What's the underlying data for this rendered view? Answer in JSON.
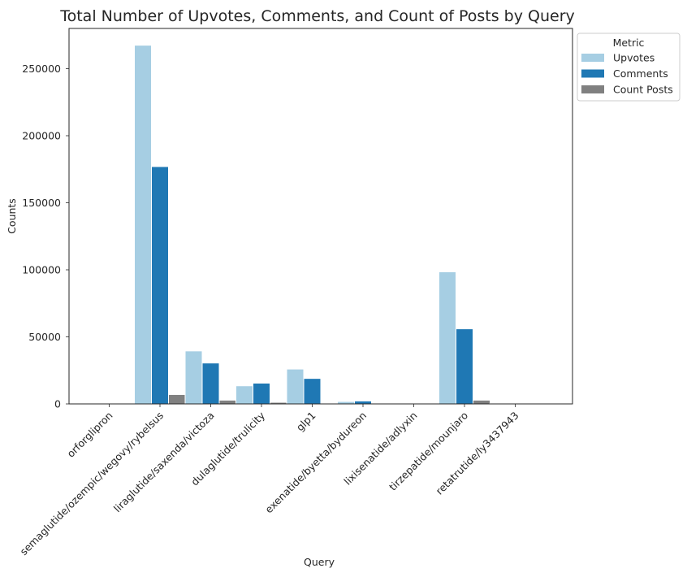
{
  "chart_data": {
    "type": "bar",
    "title": "Total Number of Upvotes, Comments, and Count of Posts by Query",
    "xlabel": "Query",
    "ylabel": "Counts",
    "categories": [
      "orforglipron",
      "semaglutide/ozempic/wegovy/rybelsus",
      "liraglutide/saxenda/victoza",
      "dulaglutide/trulicity",
      "glp1",
      "exenatide/byetta/bydureon",
      "lixisenatide/adlyxin",
      "tirzepatide/mounjaro",
      "retatrutide/ly3437943"
    ],
    "series": [
      {
        "name": "Upvotes",
        "color": "#a6cee3",
        "values": [
          0,
          267500,
          39500,
          13500,
          26000,
          1800,
          300,
          98500,
          200
        ]
      },
      {
        "name": "Comments",
        "color": "#1f78b4",
        "values": [
          0,
          177000,
          30500,
          15500,
          19000,
          2200,
          200,
          56000,
          150
        ]
      },
      {
        "name": "Count Posts",
        "color": "#808080",
        "values": [
          0,
          7000,
          2800,
          1200,
          500,
          400,
          100,
          2800,
          50
        ]
      }
    ],
    "ylim": [
      0,
      280000
    ],
    "yticks": [
      0,
      50000,
      100000,
      150000,
      200000,
      250000
    ],
    "grid": false,
    "legend": {
      "title": "Metric",
      "placement": "upper right outside"
    }
  }
}
